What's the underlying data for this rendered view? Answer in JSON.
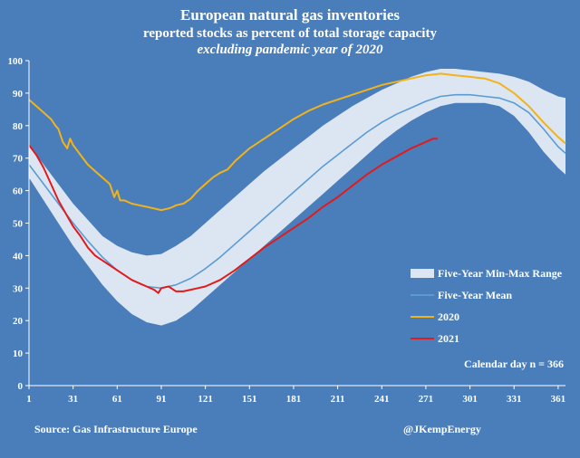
{
  "colors": {
    "background": "#4a7ebb",
    "band": "#dce6f2",
    "mean": "#5b9bd5",
    "line_2020": "#f2b21b",
    "line_2021": "#e31a1c",
    "text": "#ffffff"
  },
  "footer": {
    "source": "Source: Gas Infrastructure Europe",
    "handle": "@JKempEnergy"
  },
  "chart_data": {
    "type": "line",
    "title": "European natural gas inventories",
    "subtitle": "reported stocks as percent of total storage capacity",
    "subtitle2": "excluding pandemic year of 2020",
    "annotation": "Calendar day n = 366",
    "xlabel": "",
    "ylabel": "",
    "xlim": [
      1,
      366
    ],
    "ylim": [
      0,
      100
    ],
    "x_ticks": [
      1,
      31,
      61,
      91,
      121,
      151,
      181,
      211,
      241,
      271,
      301,
      331,
      361
    ],
    "y_ticks": [
      0,
      10,
      20,
      30,
      40,
      50,
      60,
      70,
      80,
      90,
      100
    ],
    "legend": [
      "Five-Year Min-Max Range",
      "Five-Year Mean",
      "2020",
      "2021"
    ],
    "legend_position": "bottom-right",
    "series": [
      {
        "name": "Five-Year Min-Max Range",
        "kind": "band",
        "x": [
          1,
          11,
          21,
          31,
          41,
          51,
          61,
          71,
          81,
          91,
          101,
          111,
          121,
          131,
          141,
          151,
          161,
          171,
          181,
          191,
          201,
          211,
          221,
          231,
          241,
          251,
          261,
          271,
          281,
          291,
          301,
          311,
          321,
          331,
          341,
          351,
          361,
          366
        ],
        "lower": [
          64,
          57,
          50,
          43,
          37,
          31,
          26,
          22,
          19.5,
          18.5,
          20,
          23,
          27,
          31,
          35,
          39,
          43,
          47,
          51,
          55,
          59,
          63,
          67,
          71,
          75,
          78.5,
          81.5,
          84,
          86,
          87,
          87,
          87,
          86,
          83,
          78,
          72,
          67,
          65
        ],
        "upper": [
          74,
          68,
          62,
          56,
          51,
          46,
          43,
          41,
          40,
          40.5,
          43,
          46,
          50,
          54,
          58,
          62,
          66,
          69.5,
          73,
          76.5,
          80,
          83,
          86,
          88.5,
          91,
          93,
          95,
          96.5,
          97.5,
          97.5,
          97,
          96.5,
          96,
          95,
          93.5,
          91,
          89,
          88.5
        ]
      },
      {
        "name": "Five-Year Mean",
        "x": [
          1,
          11,
          21,
          31,
          41,
          51,
          61,
          71,
          81,
          91,
          101,
          111,
          121,
          131,
          141,
          151,
          161,
          171,
          181,
          191,
          201,
          211,
          221,
          231,
          241,
          251,
          261,
          271,
          281,
          291,
          301,
          311,
          321,
          331,
          341,
          351,
          361,
          366
        ],
        "y": [
          68,
          62,
          56,
          50,
          44.5,
          39.5,
          35.5,
          32.5,
          30.5,
          30,
          31,
          33,
          36,
          39.5,
          43.5,
          47.5,
          51.5,
          55.5,
          59.5,
          63.5,
          67.5,
          71,
          74.5,
          78,
          81,
          83.5,
          85.5,
          87.5,
          89,
          89.5,
          89.5,
          89,
          88.5,
          87,
          84,
          79,
          73.5,
          71.5
        ]
      },
      {
        "name": "2020",
        "x": [
          1,
          6,
          11,
          16,
          19,
          21,
          24,
          27,
          29,
          31,
          36,
          41,
          46,
          51,
          56,
          59,
          61,
          63,
          66,
          71,
          76,
          81,
          86,
          91,
          96,
          99,
          101,
          106,
          111,
          116,
          121,
          126,
          131,
          136,
          141,
          151,
          161,
          171,
          181,
          191,
          201,
          211,
          221,
          231,
          241,
          251,
          261,
          271,
          281,
          291,
          301,
          311,
          321,
          331,
          341,
          351,
          361,
          366
        ],
        "y": [
          88,
          86,
          84,
          82,
          80,
          79,
          75,
          73,
          76,
          74,
          71,
          68,
          66,
          64,
          62,
          58,
          60,
          57,
          57,
          56,
          55.5,
          55,
          54.5,
          54,
          54.5,
          55,
          55.5,
          56,
          57.5,
          60,
          62,
          64,
          65.5,
          66.5,
          69,
          73,
          76,
          79,
          82,
          84.5,
          86.5,
          88,
          89.5,
          91,
          92.5,
          93.5,
          94.5,
          95.5,
          96,
          95.5,
          95,
          94.5,
          93,
          90,
          86,
          81,
          76.5,
          74.5
        ]
      },
      {
        "name": "2021",
        "x": [
          1,
          6,
          11,
          16,
          21,
          26,
          31,
          36,
          41,
          46,
          51,
          56,
          61,
          66,
          71,
          76,
          81,
          86,
          89,
          91,
          96,
          101,
          106,
          111,
          116,
          121,
          131,
          141,
          151,
          161,
          171,
          181,
          191,
          201,
          211,
          221,
          231,
          241,
          251,
          261,
          271,
          276,
          279
        ],
        "y": [
          74,
          71,
          67,
          62,
          57,
          53,
          49,
          46,
          42.5,
          40,
          38.5,
          37,
          35.5,
          34,
          32.5,
          31.5,
          30.5,
          29.5,
          28.5,
          30,
          30.5,
          29,
          29,
          29.5,
          30,
          30.5,
          32.5,
          35.5,
          39,
          42.5,
          45.5,
          48.5,
          51.5,
          55,
          58,
          61.5,
          65,
          68,
          70.5,
          73,
          75,
          76,
          76
        ]
      }
    ]
  }
}
